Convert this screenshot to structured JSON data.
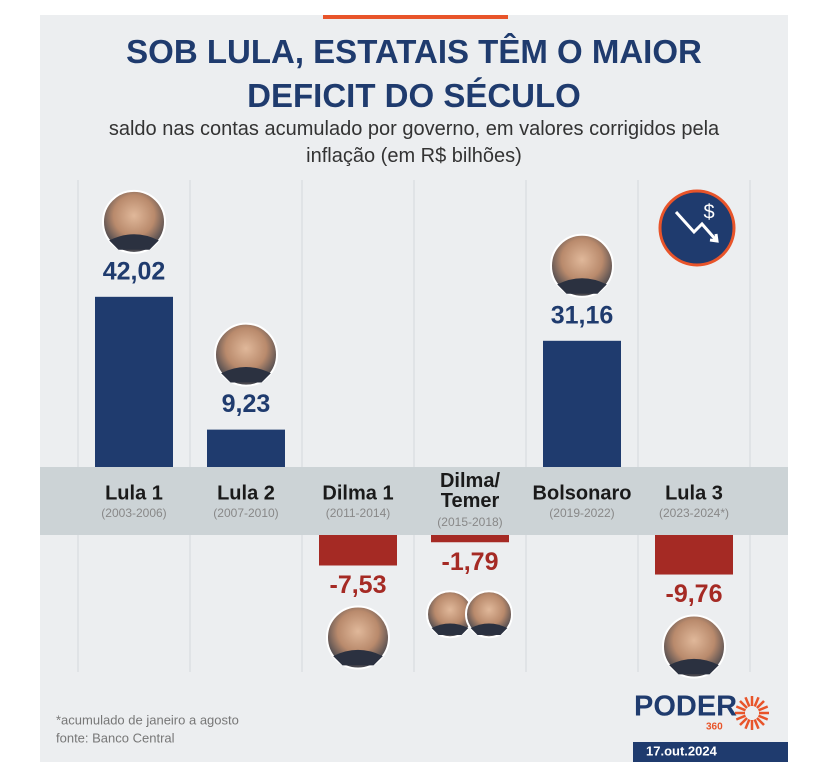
{
  "chart_data": {
    "type": "bar",
    "title": "SOB LULA, ESTATAIS TÊM O MAIOR DEFICIT DO SÉCULO",
    "subtitle": "saldo nas contas acumulado por governo, em valores corrigidos pela inflação (em R$ bilhões)",
    "categories": [
      "Lula 1",
      "Lula 2",
      "Dilma 1",
      "Dilma/Temer",
      "Bolsonaro",
      "Lula 3"
    ],
    "periods": [
      "(2003-2006)",
      "(2007-2010)",
      "(2011-2014)",
      "(2015-2018)",
      "(2019-2022)",
      "(2023-2024*)"
    ],
    "values": [
      42.02,
      9.23,
      -7.53,
      -1.79,
      31.16,
      -9.76
    ],
    "value_labels": [
      "42,02",
      "9,23",
      "-7,53",
      "-1,79",
      "31,16",
      "-9,76"
    ],
    "colors": {
      "positive": "#1f3b6e",
      "negative": "#a52a24"
    },
    "notes": [
      "*acumulado de janeiro a agosto",
      "fonte: Banco Central"
    ],
    "brand": "PODER",
    "brand_sub": "360",
    "date": "17.out.2024"
  }
}
